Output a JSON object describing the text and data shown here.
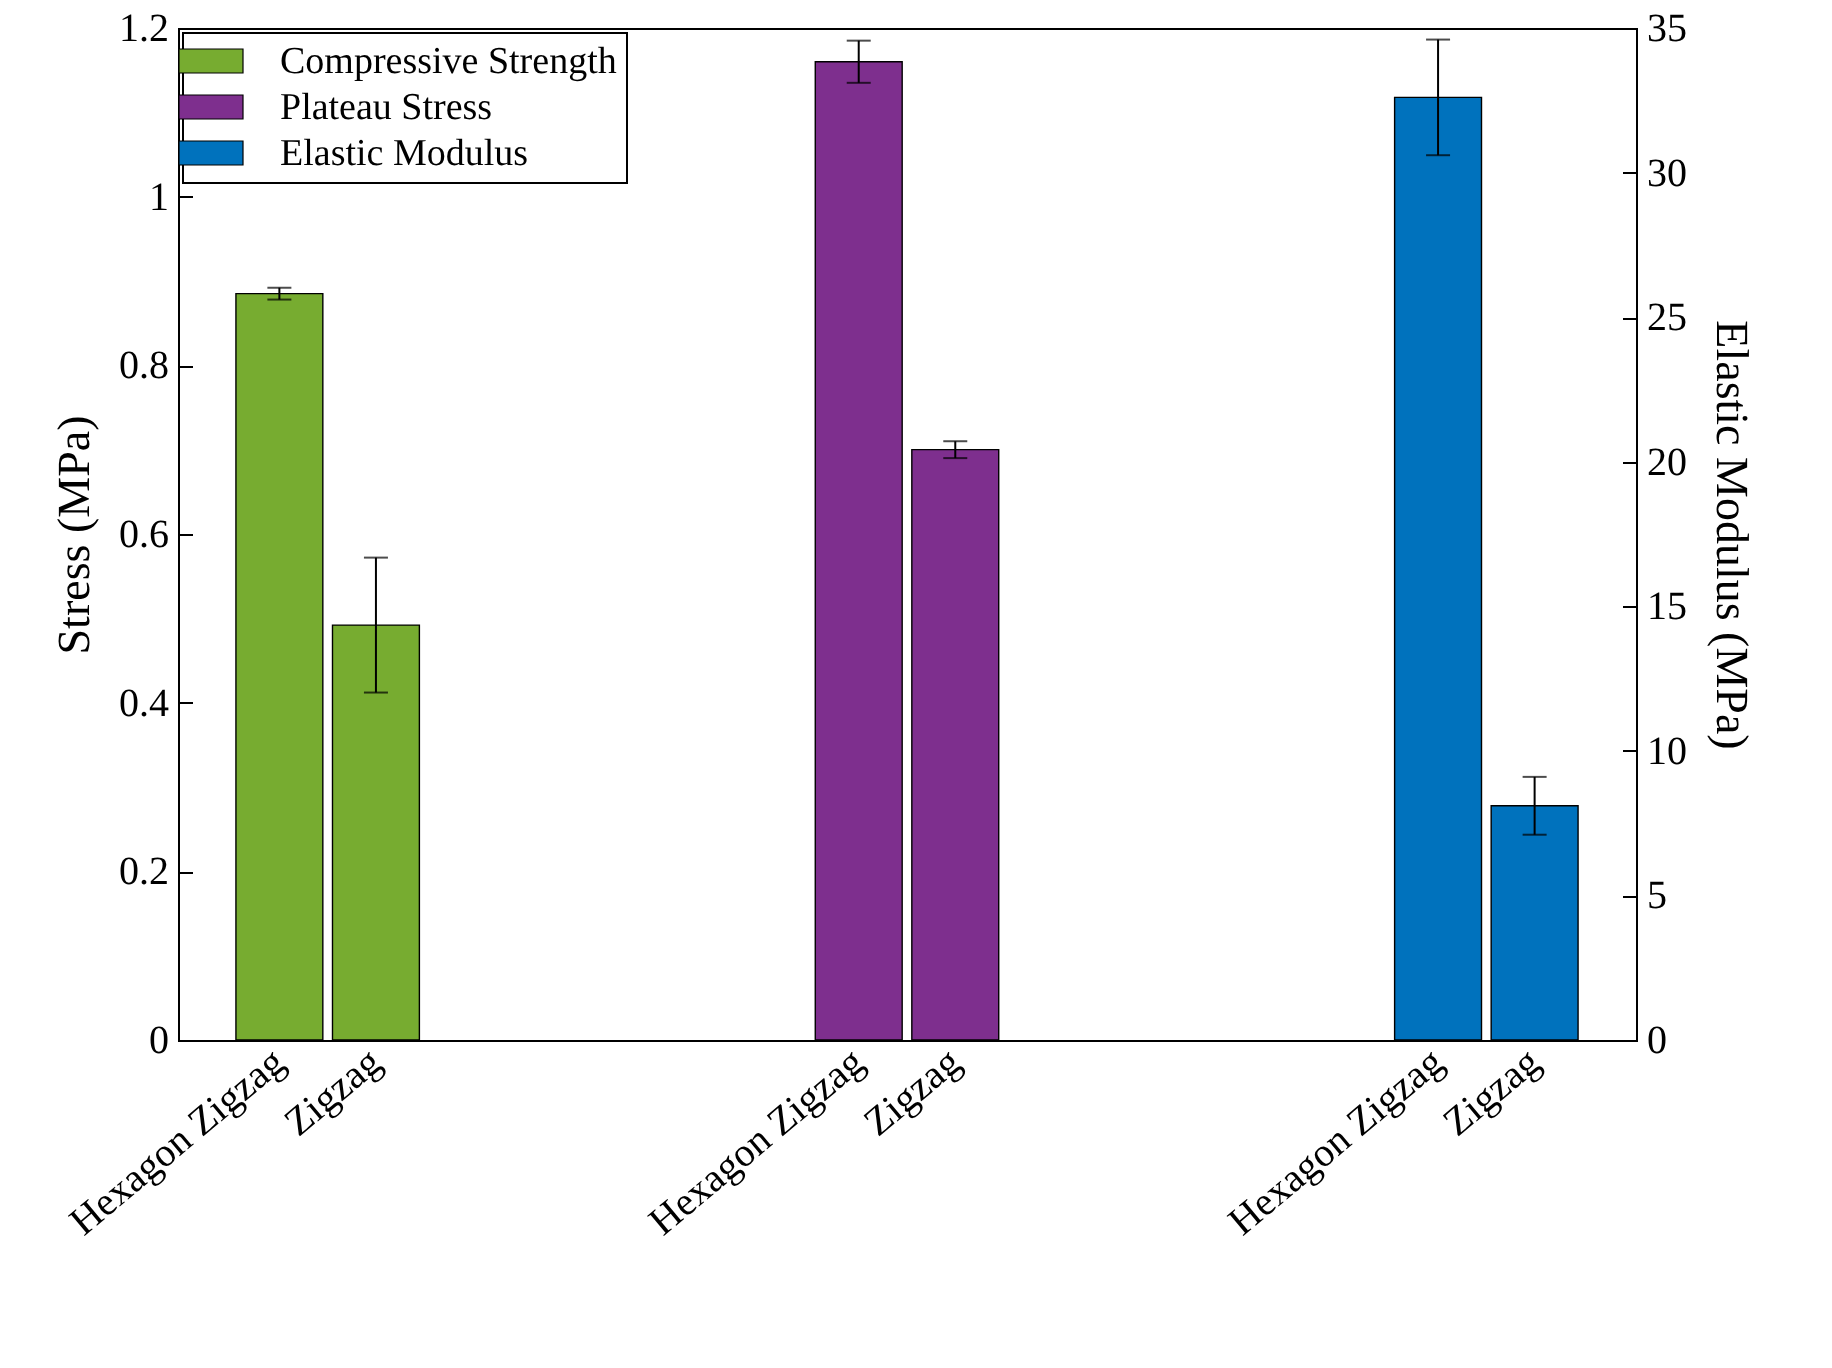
{
  "chart_data": {
    "type": "bar",
    "ylabel": "Stress (MPa)",
    "y2label": "Elastic Modulus (MPa)",
    "categories": [
      "Hexagon Zigzag",
      "Zigzag",
      null,
      null,
      null,
      null,
      "Hexagon Zigzag",
      "Zigzag",
      null,
      null,
      null,
      null,
      "Hexagon Zigzag",
      "Zigzag"
    ],
    "series": [
      {
        "name": "Compressive Strength",
        "color": "#77ac30",
        "values": [
          0.885,
          0.492,
          null,
          null,
          null,
          null,
          null,
          null,
          null,
          null,
          null,
          null,
          null,
          null
        ],
        "errors": [
          0.007,
          0.08,
          null,
          null,
          null,
          null,
          null,
          null,
          null,
          null,
          null,
          null,
          null,
          null
        ]
      },
      {
        "name": "Plateau Stress",
        "color": "#7e2f8e",
        "values": [
          null,
          null,
          null,
          null,
          null,
          null,
          1.16,
          0.7,
          null,
          null,
          null,
          null,
          null,
          null
        ],
        "errors": [
          null,
          null,
          null,
          null,
          null,
          null,
          0.025,
          0.01,
          null,
          null,
          null,
          null,
          null,
          null
        ]
      },
      {
        "name": "Elastic Modulus",
        "color": "#0072bd",
        "axis": "y2",
        "values": [
          null,
          null,
          null,
          null,
          null,
          null,
          null,
          null,
          null,
          null,
          null,
          null,
          32.6,
          8.1
        ],
        "errors": [
          null,
          null,
          null,
          null,
          null,
          null,
          null,
          null,
          null,
          null,
          null,
          null,
          2,
          1
        ]
      }
    ],
    "ylim": [
      0,
      1.2
    ],
    "yticks": [
      0,
      0.2,
      0.4,
      0.6,
      0.8,
      1,
      1.2
    ],
    "y2lim": [
      0,
      35
    ],
    "y2ticks": [
      0,
      5,
      10,
      15,
      20,
      25,
      30,
      35
    ],
    "legend": "top left"
  }
}
